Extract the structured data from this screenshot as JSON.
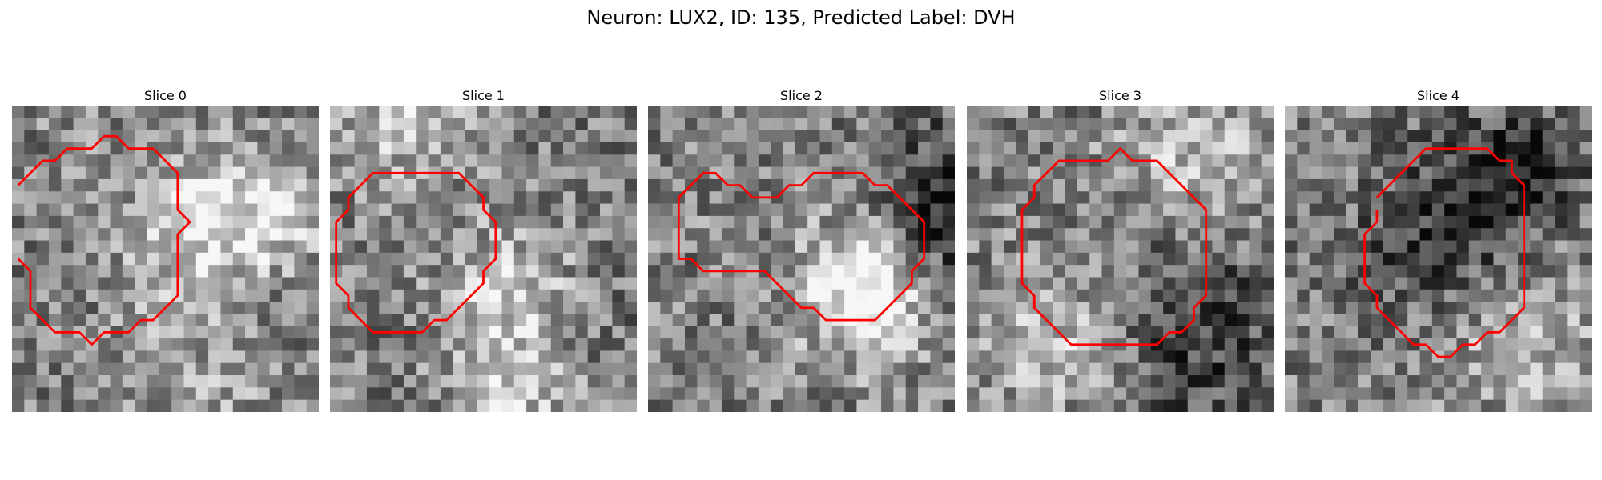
{
  "figure": {
    "title": "Neuron: LUX2, ID: 135, Predicted Label: DVH"
  },
  "panels": [
    {
      "title": "Slice 0",
      "contour": [
        [
          0.5,
          6.5
        ],
        [
          1.5,
          5.5
        ],
        [
          2.5,
          4.5
        ],
        [
          3.5,
          4.5
        ],
        [
          4.5,
          3.5
        ],
        [
          5.5,
          3.5
        ],
        [
          6.5,
          3.5
        ],
        [
          7.5,
          2.5
        ],
        [
          8.5,
          2.5
        ],
        [
          9.5,
          3.5
        ],
        [
          10.5,
          3.5
        ],
        [
          11.5,
          3.5
        ],
        [
          12.5,
          4.5
        ],
        [
          13.5,
          5.5
        ],
        [
          13.5,
          6.5
        ],
        [
          13.5,
          7.5
        ],
        [
          13.5,
          8.5
        ],
        [
          14.5,
          9.5
        ],
        [
          13.5,
          10.5
        ],
        [
          13.5,
          11.5
        ],
        [
          13.5,
          12.5
        ],
        [
          13.5,
          13.5
        ],
        [
          13.5,
          14.5
        ],
        [
          13.5,
          15.5
        ],
        [
          12.5,
          16.5
        ],
        [
          11.5,
          17.5
        ],
        [
          10.5,
          17.5
        ],
        [
          9.5,
          18.5
        ],
        [
          8.5,
          18.5
        ],
        [
          7.5,
          18.5
        ],
        [
          6.5,
          19.5
        ],
        [
          5.5,
          18.5
        ],
        [
          4.5,
          18.5
        ],
        [
          3.5,
          18.5
        ],
        [
          2.5,
          17.5
        ],
        [
          1.5,
          16.5
        ],
        [
          1.5,
          15.5
        ],
        [
          1.5,
          14.5
        ],
        [
          1.5,
          13.5
        ],
        [
          0.5,
          12.5
        ]
      ],
      "closed": false
    },
    {
      "title": "Slice 1",
      "contour": [
        [
          4.5,
          5.5
        ],
        [
          5.5,
          5.5
        ],
        [
          6.5,
          5.5
        ],
        [
          7.5,
          5.5
        ],
        [
          8.5,
          5.5
        ],
        [
          9.5,
          5.5
        ],
        [
          10.5,
          5.5
        ],
        [
          11.5,
          6.5
        ],
        [
          12.5,
          7.5
        ],
        [
          12.5,
          8.5
        ],
        [
          13.5,
          9.5
        ],
        [
          13.5,
          10.5
        ],
        [
          13.5,
          11.5
        ],
        [
          13.5,
          12.5
        ],
        [
          12.5,
          13.5
        ],
        [
          12.5,
          14.5
        ],
        [
          11.5,
          15.5
        ],
        [
          10.5,
          16.5
        ],
        [
          9.5,
          17.5
        ],
        [
          8.5,
          17.5
        ],
        [
          7.5,
          18.5
        ],
        [
          6.5,
          18.5
        ],
        [
          5.5,
          18.5
        ],
        [
          4.5,
          18.5
        ],
        [
          3.5,
          18.5
        ],
        [
          2.5,
          17.5
        ],
        [
          1.5,
          16.5
        ],
        [
          1.5,
          15.5
        ],
        [
          0.5,
          14.5
        ],
        [
          0.5,
          13.5
        ],
        [
          0.5,
          12.5
        ],
        [
          0.5,
          11.5
        ],
        [
          0.5,
          10.5
        ],
        [
          0.5,
          9.5
        ],
        [
          1.5,
          8.5
        ],
        [
          1.5,
          7.5
        ],
        [
          2.5,
          6.5
        ],
        [
          3.5,
          5.5
        ]
      ],
      "closed": true
    },
    {
      "title": "Slice 2",
      "contour": [
        [
          2.5,
          8.5
        ],
        [
          2.5,
          7.5
        ],
        [
          3.5,
          6.5
        ],
        [
          4.5,
          5.5
        ],
        [
          5.5,
          5.5
        ],
        [
          6.5,
          6.5
        ],
        [
          7.5,
          6.5
        ],
        [
          8.5,
          7.5
        ],
        [
          9.5,
          7.5
        ],
        [
          10.5,
          7.5
        ],
        [
          11.5,
          6.5
        ],
        [
          12.5,
          6.5
        ],
        [
          13.5,
          5.5
        ],
        [
          14.5,
          5.5
        ],
        [
          15.5,
          5.5
        ],
        [
          16.5,
          5.5
        ],
        [
          17.5,
          5.5
        ],
        [
          18.5,
          6.5
        ],
        [
          19.5,
          6.5
        ],
        [
          20.5,
          7.5
        ],
        [
          21.5,
          8.5
        ],
        [
          22.5,
          9.5
        ],
        [
          22.5,
          10.5
        ],
        [
          22.5,
          11.5
        ],
        [
          22.5,
          12.5
        ],
        [
          21.5,
          13.5
        ],
        [
          21.5,
          14.5
        ],
        [
          20.5,
          15.5
        ],
        [
          19.5,
          16.5
        ],
        [
          18.5,
          17.5
        ],
        [
          17.5,
          17.5
        ],
        [
          16.5,
          17.5
        ],
        [
          15.5,
          17.5
        ],
        [
          14.5,
          17.5
        ],
        [
          13.5,
          16.5
        ],
        [
          12.5,
          16.5
        ],
        [
          11.5,
          15.5
        ],
        [
          10.5,
          14.5
        ],
        [
          9.5,
          13.5
        ],
        [
          8.5,
          13.5
        ],
        [
          7.5,
          13.5
        ],
        [
          6.5,
          13.5
        ],
        [
          5.5,
          13.5
        ],
        [
          4.5,
          13.5
        ],
        [
          3.5,
          12.5
        ],
        [
          2.5,
          12.5
        ],
        [
          2.5,
          11.5
        ],
        [
          2.5,
          10.5
        ],
        [
          2.5,
          9.5
        ]
      ],
      "closed": true
    },
    {
      "title": "Slice 3",
      "contour": [
        [
          9.5,
          4.5
        ],
        [
          10.5,
          4.5
        ],
        [
          11.5,
          4.5
        ],
        [
          12.5,
          3.5
        ],
        [
          13.5,
          4.5
        ],
        [
          14.5,
          4.5
        ],
        [
          15.5,
          4.5
        ],
        [
          16.5,
          5.5
        ],
        [
          17.5,
          6.5
        ],
        [
          18.5,
          7.5
        ],
        [
          19.5,
          8.5
        ],
        [
          19.5,
          9.5
        ],
        [
          19.5,
          10.5
        ],
        [
          19.5,
          11.5
        ],
        [
          19.5,
          12.5
        ],
        [
          19.5,
          13.5
        ],
        [
          19.5,
          14.5
        ],
        [
          19.5,
          15.5
        ],
        [
          18.5,
          16.5
        ],
        [
          18.5,
          17.5
        ],
        [
          17.5,
          18.5
        ],
        [
          16.5,
          18.5
        ],
        [
          15.5,
          19.5
        ],
        [
          14.5,
          19.5
        ],
        [
          13.5,
          19.5
        ],
        [
          12.5,
          19.5
        ],
        [
          11.5,
          19.5
        ],
        [
          10.5,
          19.5
        ],
        [
          9.5,
          19.5
        ],
        [
          8.5,
          19.5
        ],
        [
          7.5,
          18.5
        ],
        [
          6.5,
          17.5
        ],
        [
          5.5,
          16.5
        ],
        [
          5.5,
          15.5
        ],
        [
          4.5,
          14.5
        ],
        [
          4.5,
          13.5
        ],
        [
          4.5,
          12.5
        ],
        [
          4.5,
          11.5
        ],
        [
          4.5,
          10.5
        ],
        [
          4.5,
          9.5
        ],
        [
          4.5,
          8.5
        ],
        [
          5.5,
          7.5
        ],
        [
          5.5,
          6.5
        ],
        [
          6.5,
          5.5
        ],
        [
          7.5,
          4.5
        ],
        [
          8.5,
          4.5
        ]
      ],
      "closed": true
    },
    {
      "title": "Slice 4",
      "contour": [
        [
          7.5,
          7.5
        ],
        [
          8.5,
          6.5
        ],
        [
          9.5,
          5.5
        ],
        [
          10.5,
          4.5
        ],
        [
          11.5,
          3.5
        ],
        [
          12.5,
          3.5
        ],
        [
          13.5,
          3.5
        ],
        [
          14.5,
          3.5
        ],
        [
          15.5,
          3.5
        ],
        [
          16.5,
          3.5
        ],
        [
          17.5,
          4.5
        ],
        [
          18.5,
          4.5
        ],
        [
          18.5,
          5.5
        ],
        [
          19.5,
          6.5
        ],
        [
          19.5,
          7.5
        ],
        [
          19.5,
          8.5
        ],
        [
          19.5,
          9.5
        ],
        [
          19.5,
          10.5
        ],
        [
          19.5,
          11.5
        ],
        [
          19.5,
          12.5
        ],
        [
          19.5,
          13.5
        ],
        [
          19.5,
          14.5
        ],
        [
          19.5,
          15.5
        ],
        [
          19.5,
          16.5
        ],
        [
          18.5,
          17.5
        ],
        [
          17.5,
          18.5
        ],
        [
          16.5,
          18.5
        ],
        [
          15.5,
          19.5
        ],
        [
          14.5,
          19.5
        ],
        [
          13.5,
          20.5
        ],
        [
          12.5,
          20.5
        ],
        [
          11.5,
          19.5
        ],
        [
          10.5,
          19.5
        ],
        [
          9.5,
          18.5
        ],
        [
          8.5,
          17.5
        ],
        [
          7.5,
          16.5
        ],
        [
          7.5,
          15.5
        ],
        [
          6.5,
          14.5
        ],
        [
          6.5,
          13.5
        ],
        [
          6.5,
          12.5
        ],
        [
          6.5,
          11.5
        ],
        [
          6.5,
          10.5
        ],
        [
          7.5,
          9.5
        ],
        [
          7.5,
          8.5
        ]
      ],
      "closed": false
    }
  ],
  "style": {
    "contour_color": "#ff0000"
  }
}
